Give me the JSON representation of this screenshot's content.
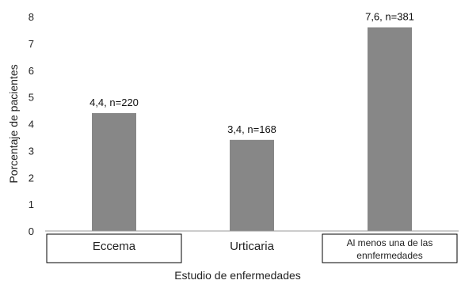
{
  "chart_data": {
    "type": "bar",
    "categories": [
      "Eccema",
      "Urticaria",
      "Al menos una de las ennfermedades"
    ],
    "category_lines": [
      [
        "Eccema"
      ],
      [
        "Urticaria"
      ],
      [
        "Al menos una de las",
        "ennfermedades"
      ]
    ],
    "category_boxed": [
      true,
      false,
      true
    ],
    "values": [
      4.4,
      3.4,
      7.6
    ],
    "data_labels": [
      "4,4, n=220",
      "3,4, n=168",
      "7,6, n=381"
    ],
    "title": "",
    "xlabel": "Estudio de enfermedades",
    "ylabel": "Porcentaje de pacientes",
    "ylim": [
      0,
      8
    ],
    "yticks": [
      0,
      1,
      2,
      3,
      4,
      5,
      6,
      7,
      8
    ],
    "grid": false,
    "colors": {
      "bar": "#878787",
      "axis": "#9a9a9a",
      "box": "#000000"
    }
  }
}
